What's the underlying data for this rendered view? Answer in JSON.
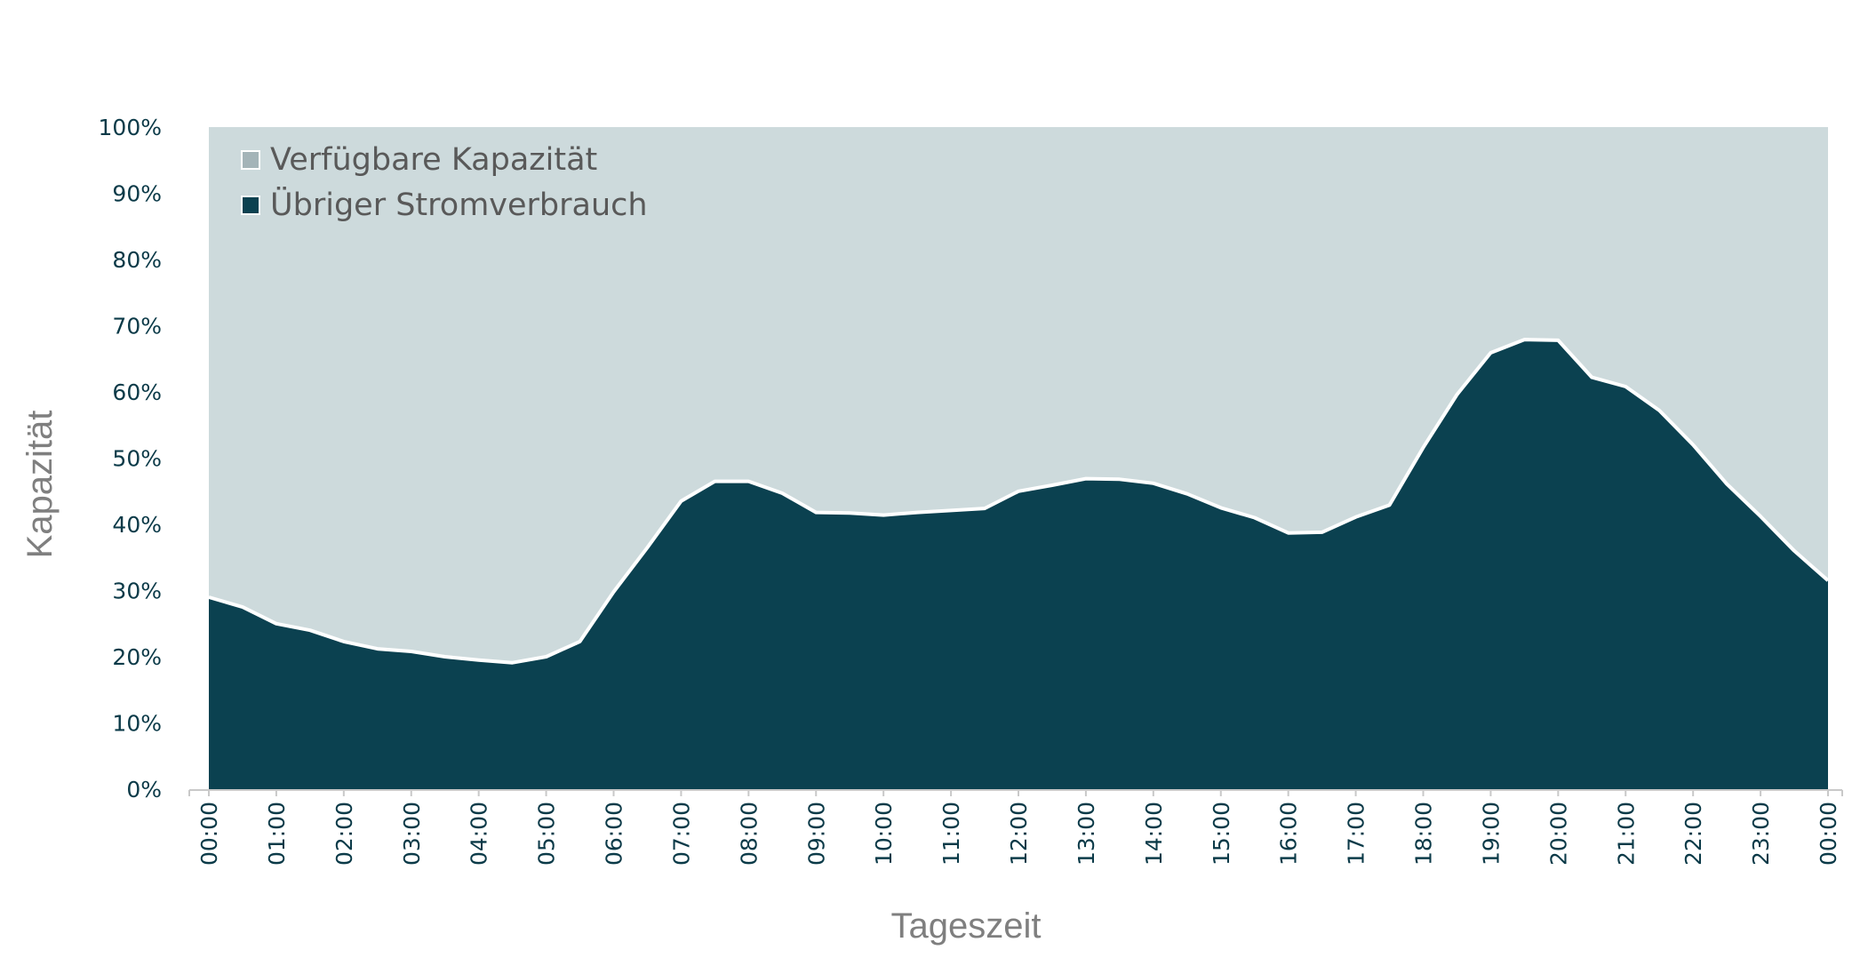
{
  "chart_data": {
    "type": "area",
    "stacked": true,
    "title": "",
    "xlabel": "Tageszeit",
    "ylabel": "Kapazität",
    "ylim": [
      0,
      100
    ],
    "y_ticks": [
      "0%",
      "10%",
      "20%",
      "30%",
      "40%",
      "50%",
      "60%",
      "70%",
      "80%",
      "90%",
      "100%"
    ],
    "x_ticks": [
      "00:00",
      "01:00",
      "02:00",
      "03:00",
      "04:00",
      "05:00",
      "06:00",
      "07:00",
      "08:00",
      "09:00",
      "10:00",
      "11:00",
      "12:00",
      "13:00",
      "14:00",
      "15:00",
      "16:00",
      "17:00",
      "18:00",
      "19:00",
      "20:00",
      "21:00",
      "22:00",
      "23:00",
      "00:00"
    ],
    "x_hours": [
      0,
      0.5,
      1,
      1.5,
      2,
      2.5,
      3,
      3.5,
      4,
      4.5,
      5,
      5.5,
      6,
      6.5,
      7,
      7.5,
      8,
      8.5,
      9,
      9.5,
      10,
      10.5,
      11,
      11.5,
      12,
      12.5,
      13,
      13.5,
      14,
      14.5,
      15,
      15.5,
      16,
      16.5,
      17,
      17.5,
      18,
      18.5,
      19,
      19.5,
      20,
      20.5,
      21,
      21.5,
      22,
      22.5,
      23,
      23.5,
      24
    ],
    "legend_position": "top-left",
    "grid": false,
    "series": [
      {
        "name": "Übriger Stromverbrauch",
        "color": "#0b4150",
        "values": [
          29,
          27.5,
          25,
          24,
          22.3,
          21.2,
          20.8,
          20,
          19.5,
          19.1,
          20,
          22.3,
          29.8,
          36.5,
          43.5,
          46.5,
          46.5,
          44.7,
          41.8,
          41.7,
          41.4,
          41.8,
          42.1,
          42.4,
          45,
          45.9,
          46.9,
          46.8,
          46.2,
          44.6,
          42.5,
          41,
          38.7,
          38.8,
          41.1,
          42.9,
          51.6,
          59.6,
          65.9,
          67.9,
          67.8,
          62.2,
          60.8,
          57.2,
          52,
          46.1,
          41.2,
          36,
          31.5
        ]
      },
      {
        "name": "Verfügbare Kapazität",
        "color": "#cddadc",
        "legend_color": "#a4b4b8",
        "fills_to": 100
      }
    ]
  }
}
